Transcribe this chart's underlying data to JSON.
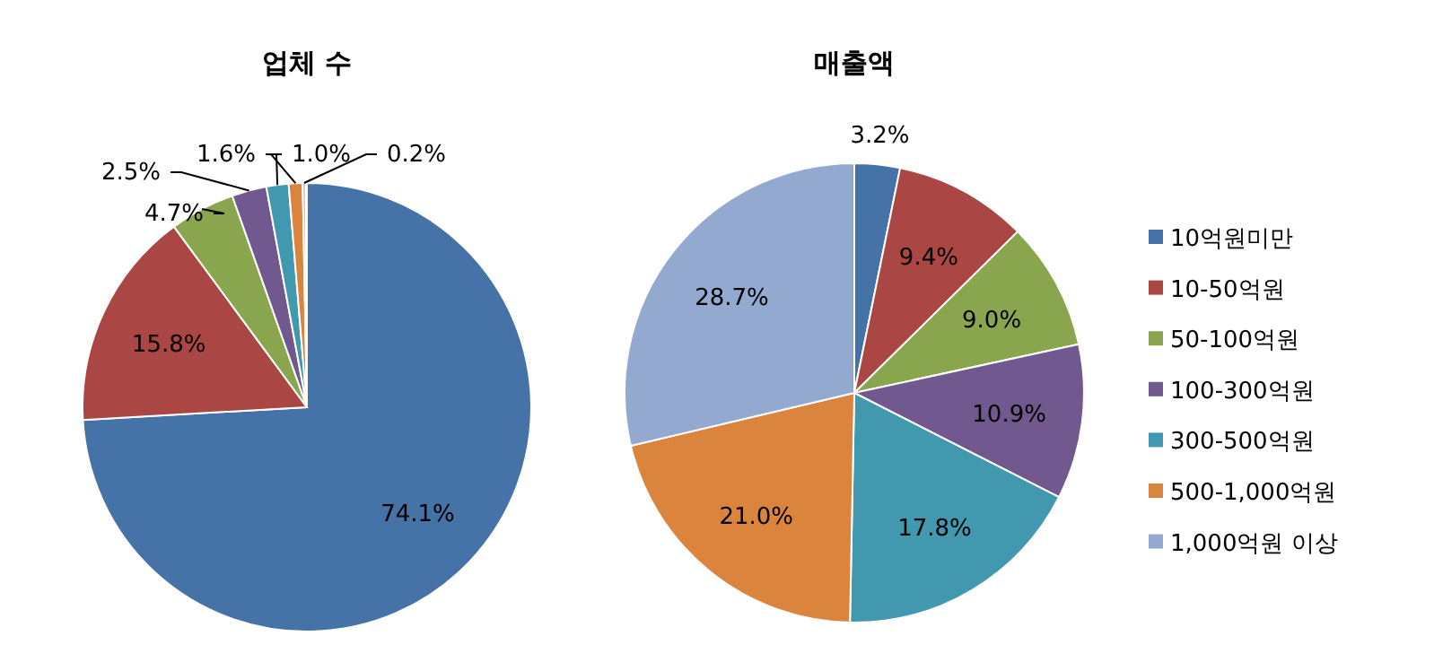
{
  "chart_data": [
    {
      "type": "pie",
      "title": "업체 수",
      "categories": [
        null,
        null,
        null,
        null,
        null,
        null,
        null
      ],
      "values": [
        74.1,
        15.8,
        4.7,
        2.5,
        1.6,
        1.0,
        0.2
      ],
      "value_labels": [
        "74.1%",
        "15.8%",
        "4.7%",
        "2.5%",
        "1.6%",
        "1.0%",
        "0.2%"
      ],
      "colors": [
        "#4572a7",
        "#aa4643",
        "#89a54e",
        "#71588f",
        "#4198af",
        "#db843d",
        "#93a9cf"
      ]
    },
    {
      "type": "pie",
      "title": "매출액",
      "categories": [
        "10억원미만",
        "10-50억원",
        "50-100억원",
        "100-300억원",
        "300-500억원",
        "500-1,000억원",
        "1,000억원 이상"
      ],
      "values": [
        3.2,
        9.4,
        9.0,
        10.9,
        17.8,
        21.0,
        28.7
      ],
      "value_labels": [
        "3.2%",
        "9.4%",
        "9.0%",
        "10.9%",
        "17.8%",
        "21.0%",
        "28.7%"
      ],
      "colors": [
        "#4572a7",
        "#aa4643",
        "#89a54e",
        "#71588f",
        "#4198af",
        "#db843d",
        "#93a9cf"
      ],
      "legend": "right"
    }
  ]
}
